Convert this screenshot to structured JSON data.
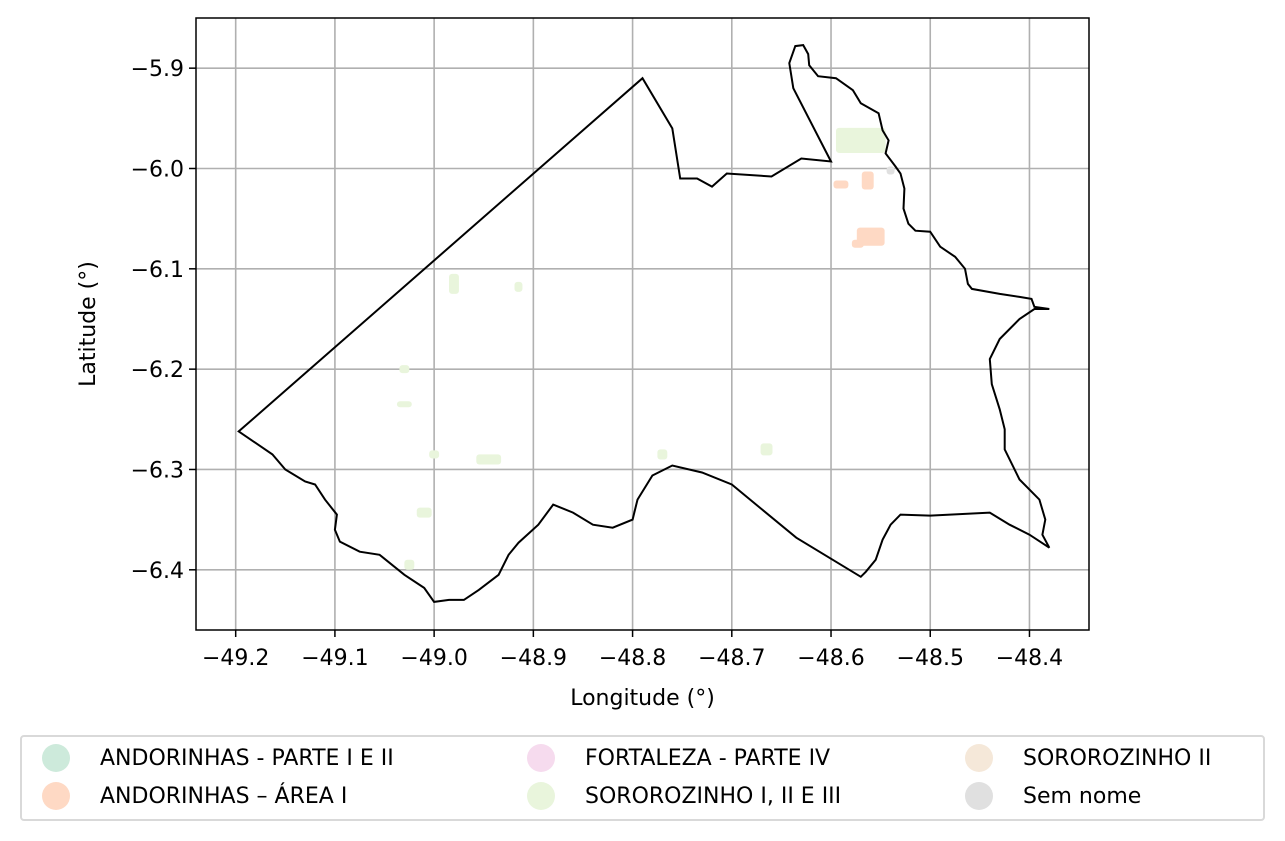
{
  "chart_data": {
    "type": "map",
    "title": "",
    "xlabel": "Longitude (°)",
    "ylabel": "Latitude (°)",
    "xlim": [
      -49.24,
      -48.34
    ],
    "ylim": [
      -6.46,
      -5.85
    ],
    "x_ticks": [
      -49.2,
      -49.1,
      -49.0,
      -48.9,
      -48.8,
      -48.7,
      -48.6,
      -48.5,
      -48.4
    ],
    "y_ticks": [
      -5.9,
      -6.0,
      -6.1,
      -6.2,
      -6.3,
      -6.4
    ],
    "x_tick_labels": [
      "−49.2",
      "−49.1",
      "−49.0",
      "−48.9",
      "−48.8",
      "−48.7",
      "−48.6",
      "−48.5",
      "−48.4"
    ],
    "y_tick_labels": [
      "−5.9",
      "−6.0",
      "−6.1",
      "−6.2",
      "−6.3",
      "−6.4"
    ],
    "grid": true,
    "legend_position": "bottom",
    "boundary": [
      [
        -49.197,
        -6.262
      ],
      [
        -48.79,
        -5.91
      ],
      [
        -48.76,
        -5.96
      ],
      [
        -48.752,
        -6.01
      ],
      [
        -48.735,
        -6.01
      ],
      [
        -48.72,
        -6.018
      ],
      [
        -48.705,
        -6.005
      ],
      [
        -48.66,
        -6.008
      ],
      [
        -48.63,
        -5.99
      ],
      [
        -48.6,
        -5.993
      ],
      [
        -48.638,
        -5.92
      ],
      [
        -48.642,
        -5.895
      ],
      [
        -48.636,
        -5.878
      ],
      [
        -48.628,
        -5.877
      ],
      [
        -48.623,
        -5.886
      ],
      [
        -48.622,
        -5.897
      ],
      [
        -48.613,
        -5.908
      ],
      [
        -48.595,
        -5.91
      ],
      [
        -48.578,
        -5.922
      ],
      [
        -48.57,
        -5.935
      ],
      [
        -48.552,
        -5.945
      ],
      [
        -48.548,
        -5.962
      ],
      [
        -48.542,
        -5.972
      ],
      [
        -48.545,
        -5.985
      ],
      [
        -48.535,
        -5.998
      ],
      [
        -48.53,
        -6.005
      ],
      [
        -48.526,
        -6.02
      ],
      [
        -48.527,
        -6.04
      ],
      [
        -48.522,
        -6.055
      ],
      [
        -48.515,
        -6.062
      ],
      [
        -48.5,
        -6.063
      ],
      [
        -48.49,
        -6.078
      ],
      [
        -48.475,
        -6.088
      ],
      [
        -48.465,
        -6.1
      ],
      [
        -48.462,
        -6.115
      ],
      [
        -48.458,
        -6.12
      ],
      [
        -48.43,
        -6.125
      ],
      [
        -48.41,
        -6.128
      ],
      [
        -48.398,
        -6.13
      ],
      [
        -48.395,
        -6.138
      ],
      [
        -48.38,
        -6.14
      ],
      [
        -48.395,
        -6.14
      ],
      [
        -48.41,
        -6.15
      ],
      [
        -48.43,
        -6.17
      ],
      [
        -48.44,
        -6.19
      ],
      [
        -48.438,
        -6.215
      ],
      [
        -48.43,
        -6.24
      ],
      [
        -48.425,
        -6.26
      ],
      [
        -48.425,
        -6.28
      ],
      [
        -48.41,
        -6.31
      ],
      [
        -48.39,
        -6.33
      ],
      [
        -48.384,
        -6.35
      ],
      [
        -48.387,
        -6.365
      ],
      [
        -48.38,
        -6.378
      ],
      [
        -48.4,
        -6.365
      ],
      [
        -48.42,
        -6.355
      ],
      [
        -48.44,
        -6.343
      ],
      [
        -48.5,
        -6.346
      ],
      [
        -48.53,
        -6.345
      ],
      [
        -48.54,
        -6.355
      ],
      [
        -48.548,
        -6.37
      ],
      [
        -48.555,
        -6.39
      ],
      [
        -48.565,
        -6.402
      ],
      [
        -48.57,
        -6.407
      ],
      [
        -48.635,
        -6.368
      ],
      [
        -48.7,
        -6.315
      ],
      [
        -48.73,
        -6.303
      ],
      [
        -48.76,
        -6.296
      ],
      [
        -48.78,
        -6.306
      ],
      [
        -48.795,
        -6.33
      ],
      [
        -48.8,
        -6.35
      ],
      [
        -48.82,
        -6.358
      ],
      [
        -48.84,
        -6.355
      ],
      [
        -48.86,
        -6.343
      ],
      [
        -48.88,
        -6.335
      ],
      [
        -48.895,
        -6.355
      ],
      [
        -48.915,
        -6.373
      ],
      [
        -48.925,
        -6.385
      ],
      [
        -48.935,
        -6.405
      ],
      [
        -48.955,
        -6.42
      ],
      [
        -48.97,
        -6.43
      ],
      [
        -48.985,
        -6.43
      ],
      [
        -49.0,
        -6.432
      ],
      [
        -49.01,
        -6.418
      ],
      [
        -49.03,
        -6.405
      ],
      [
        -49.055,
        -6.385
      ],
      [
        -49.075,
        -6.382
      ],
      [
        -49.095,
        -6.372
      ],
      [
        -49.1,
        -6.36
      ],
      [
        -49.098,
        -6.345
      ],
      [
        -49.11,
        -6.33
      ],
      [
        -49.12,
        -6.315
      ],
      [
        -49.13,
        -6.312
      ],
      [
        -49.15,
        -6.3
      ],
      [
        -49.163,
        -6.285
      ],
      [
        -49.197,
        -6.262
      ]
    ],
    "series": [
      {
        "name": "ANDORINHAS - PARTE I E II",
        "color": "#cdeadb",
        "patches": []
      },
      {
        "name": "ANDORINHAS – ÁREA I",
        "color": "#fed9c4",
        "patches": [
          {
            "lon": -48.59,
            "lat": -6.016,
            "w": 0.015,
            "h": 0.008
          },
          {
            "lon": -48.563,
            "lat": -6.012,
            "w": 0.012,
            "h": 0.018
          },
          {
            "lon": -48.56,
            "lat": -6.068,
            "w": 0.028,
            "h": 0.018
          },
          {
            "lon": -48.573,
            "lat": -6.075,
            "w": 0.012,
            "h": 0.008
          }
        ]
      },
      {
        "name": "FORTALEZA - PARTE IV",
        "color": "#f6dbee",
        "patches": []
      },
      {
        "name": "SOROROZINHO I, II E III",
        "color": "#e9f5dc",
        "patches": [
          {
            "lon": -48.57,
            "lat": -5.972,
            "w": 0.05,
            "h": 0.025
          },
          {
            "lon": -49.03,
            "lat": -6.235,
            "w": 0.015,
            "h": 0.006
          },
          {
            "lon": -49.03,
            "lat": -6.2,
            "w": 0.01,
            "h": 0.008
          },
          {
            "lon": -48.945,
            "lat": -6.29,
            "w": 0.025,
            "h": 0.01
          },
          {
            "lon": -49.01,
            "lat": -6.343,
            "w": 0.015,
            "h": 0.01
          },
          {
            "lon": -48.665,
            "lat": -6.28,
            "w": 0.012,
            "h": 0.012
          },
          {
            "lon": -48.98,
            "lat": -6.115,
            "w": 0.01,
            "h": 0.02
          },
          {
            "lon": -48.915,
            "lat": -6.118,
            "w": 0.008,
            "h": 0.01
          },
          {
            "lon": -49.0,
            "lat": -6.285,
            "w": 0.01,
            "h": 0.008
          },
          {
            "lon": -48.77,
            "lat": -6.285,
            "w": 0.01,
            "h": 0.01
          },
          {
            "lon": -49.025,
            "lat": -6.395,
            "w": 0.01,
            "h": 0.01
          }
        ]
      },
      {
        "name": "SOROROZINHO II",
        "color": "#f5e8d9",
        "patches": []
      },
      {
        "name": "Sem nome",
        "color": "#e0e0e0",
        "patches": [
          {
            "lon": -48.54,
            "lat": -6.002,
            "w": 0.008,
            "h": 0.008
          }
        ]
      }
    ]
  },
  "legend": {
    "items": [
      {
        "label": "ANDORINHAS - PARTE I E II",
        "color": "#cdeadb"
      },
      {
        "label": "ANDORINHAS – ÁREA I",
        "color": "#fed9c4"
      },
      {
        "label": "FORTALEZA - PARTE IV",
        "color": "#f6dbee"
      },
      {
        "label": "SOROROZINHO I, II E III",
        "color": "#e9f5dc"
      },
      {
        "label": "SOROROZINHO II",
        "color": "#f5e8d9"
      },
      {
        "label": "Sem nome",
        "color": "#e0e0e0"
      }
    ]
  }
}
